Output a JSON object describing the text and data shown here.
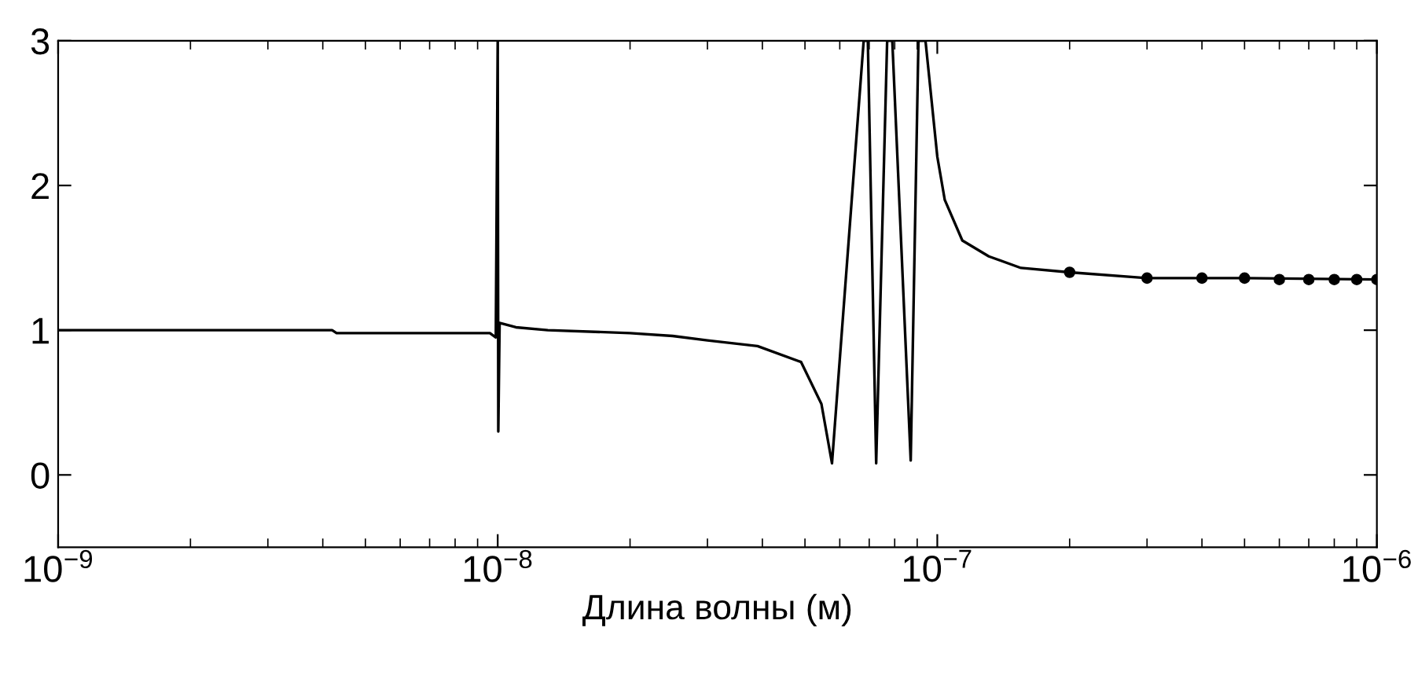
{
  "chart_data": {
    "type": "line",
    "xlabel": "Длина волны (м)",
    "log": "x",
    "xlim": [
      1e-09,
      1e-06
    ],
    "ylim": [
      -0.5,
      3
    ],
    "xticks": [
      {
        "value": 1e-09,
        "label": "10$^{−9}$"
      },
      {
        "value": 1e-08,
        "label": "10$^{−8}$"
      },
      {
        "value": 1e-07,
        "label": "10$^{−7}$"
      },
      {
        "value": 1e-06,
        "label": "10$^{−6}$"
      }
    ],
    "yticks": [
      0,
      1,
      2,
      3
    ],
    "grid": false,
    "series": [
      {
        "color": "#000000",
        "marker": "none",
        "line_style": "solid",
        "x": [
          1e-09,
          4.2e-09,
          4.3e-09,
          9.6e-09,
          9.9e-09,
          1e-08,
          1.003e-08,
          1.01e-08,
          1.1e-08,
          1.3e-08,
          2e-08,
          2.5e-08,
          3e-08,
          3.9e-08,
          4.9e-08,
          5.45e-08,
          5.76e-08,
          6.8e-08,
          6.95e-08,
          7.26e-08,
          7.69e-08,
          7.9e-08,
          8.7e-08,
          9.06e-08,
          9.4e-08,
          1e-07,
          1.04e-07,
          1.14e-07,
          1.31e-07,
          1.55e-07,
          2e-07,
          3e-07,
          5e-07,
          1e-06
        ],
        "values": [
          1.0,
          1.0,
          0.98,
          0.98,
          0.95,
          3.0,
          0.3,
          1.05,
          1.02,
          1.0,
          0.98,
          0.96,
          0.93,
          0.89,
          0.78,
          0.49,
          0.08,
          3.0,
          3.0,
          0.08,
          3.0,
          3.0,
          0.1,
          3.0,
          3.0,
          2.2,
          1.9,
          1.62,
          1.51,
          1.43,
          1.4,
          1.36,
          1.36,
          1.35
        ]
      },
      {
        "type": "scatter",
        "color": "#000000",
        "marker": "circle",
        "x": [
          2e-07,
          3e-07,
          4e-07,
          5e-07,
          6e-07,
          7e-07,
          8e-07,
          9e-07,
          1e-06
        ],
        "values": [
          1.4,
          1.36,
          1.36,
          1.36,
          1.35,
          1.35,
          1.35,
          1.35,
          1.35
        ]
      }
    ]
  }
}
